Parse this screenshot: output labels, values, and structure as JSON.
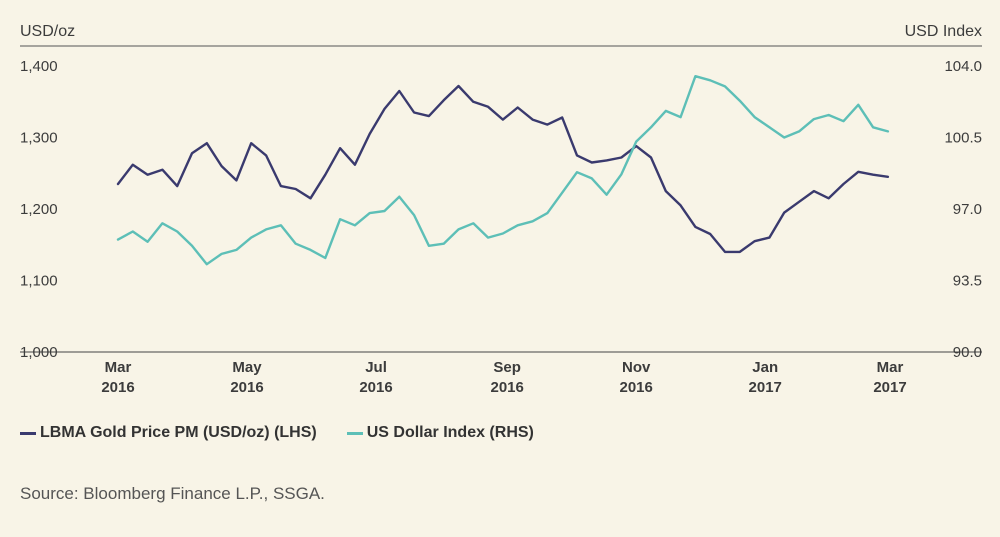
{
  "chart_data": {
    "type": "line",
    "left_axis": {
      "label": "USD/oz",
      "ticks": [
        "1,400",
        "1,300",
        "1,200",
        "1,100",
        "1,000"
      ],
      "ylim": [
        1000,
        1400
      ]
    },
    "right_axis": {
      "label": "USD Index",
      "ticks": [
        "104.0",
        "100.5",
        "97.0",
        "93.5",
        "90.0"
      ],
      "ylim": [
        90.0,
        104.0
      ]
    },
    "x_ticks": [
      {
        "line1": "Mar",
        "line2": "2016",
        "date": "2016-03-01"
      },
      {
        "line1": "May",
        "line2": "2016",
        "date": "2016-05-01"
      },
      {
        "line1": "Jul",
        "line2": "2016",
        "date": "2016-07-01"
      },
      {
        "line1": "Sep",
        "line2": "2016",
        "date": "2016-09-01"
      },
      {
        "line1": "Nov",
        "line2": "2016",
        "date": "2016-11-01"
      },
      {
        "line1": "Jan",
        "line2": "2017",
        "date": "2017-01-01"
      },
      {
        "line1": "Mar",
        "line2": "2017",
        "date": "2017-03-01"
      }
    ],
    "xlim": [
      "2016-03-01",
      "2017-03-01"
    ],
    "grid": false,
    "legend_position": "bottom-left",
    "series": [
      {
        "name": "LBMA Gold Price PM (USD/oz) (LHS)",
        "axis": "left",
        "color": "#3a3a6e",
        "x": [
          "2016-03-01",
          "2016-03-08",
          "2016-03-15",
          "2016-03-22",
          "2016-03-29",
          "2016-04-05",
          "2016-04-12",
          "2016-04-19",
          "2016-04-26",
          "2016-05-03",
          "2016-05-10",
          "2016-05-17",
          "2016-05-24",
          "2016-05-31",
          "2016-06-07",
          "2016-06-14",
          "2016-06-21",
          "2016-06-28",
          "2016-07-05",
          "2016-07-12",
          "2016-07-19",
          "2016-07-26",
          "2016-08-02",
          "2016-08-09",
          "2016-08-16",
          "2016-08-23",
          "2016-08-30",
          "2016-09-06",
          "2016-09-13",
          "2016-09-20",
          "2016-09-27",
          "2016-10-04",
          "2016-10-11",
          "2016-10-18",
          "2016-10-25",
          "2016-11-01",
          "2016-11-08",
          "2016-11-15",
          "2016-11-22",
          "2016-11-29",
          "2016-12-06",
          "2016-12-13",
          "2016-12-20",
          "2016-12-27",
          "2017-01-03",
          "2017-01-10",
          "2017-01-17",
          "2017-01-24",
          "2017-01-31",
          "2017-02-07",
          "2017-02-14",
          "2017-02-21",
          "2017-02-28"
        ],
        "values": [
          1235,
          1262,
          1248,
          1255,
          1232,
          1278,
          1292,
          1260,
          1240,
          1292,
          1275,
          1232,
          1228,
          1215,
          1248,
          1285,
          1262,
          1305,
          1340,
          1365,
          1335,
          1330,
          1352,
          1372,
          1350,
          1343,
          1325,
          1342,
          1325,
          1318,
          1328,
          1275,
          1265,
          1268,
          1272,
          1288,
          1272,
          1225,
          1205,
          1175,
          1165,
          1140,
          1140,
          1155,
          1160,
          1195,
          1210,
          1225,
          1215,
          1235,
          1252,
          1248,
          1245
        ]
      },
      {
        "name": "US Dollar Index (RHS)",
        "axis": "right",
        "color": "#5dbfb7",
        "x": [
          "2016-03-01",
          "2016-03-08",
          "2016-03-15",
          "2016-03-22",
          "2016-03-29",
          "2016-04-05",
          "2016-04-12",
          "2016-04-19",
          "2016-04-26",
          "2016-05-03",
          "2016-05-10",
          "2016-05-17",
          "2016-05-24",
          "2016-05-31",
          "2016-06-07",
          "2016-06-14",
          "2016-06-21",
          "2016-06-28",
          "2016-07-05",
          "2016-07-12",
          "2016-07-19",
          "2016-07-26",
          "2016-08-02",
          "2016-08-09",
          "2016-08-16",
          "2016-08-23",
          "2016-08-30",
          "2016-09-06",
          "2016-09-13",
          "2016-09-20",
          "2016-09-27",
          "2016-10-04",
          "2016-10-11",
          "2016-10-18",
          "2016-10-25",
          "2016-11-01",
          "2016-11-08",
          "2016-11-15",
          "2016-11-22",
          "2016-11-29",
          "2016-12-06",
          "2016-12-13",
          "2016-12-20",
          "2016-12-27",
          "2017-01-03",
          "2017-01-10",
          "2017-01-17",
          "2017-01-24",
          "2017-01-31",
          "2017-02-07",
          "2017-02-14",
          "2017-02-21",
          "2017-02-28"
        ],
        "values": [
          95.5,
          95.9,
          95.4,
          96.3,
          95.9,
          95.2,
          94.3,
          94.8,
          95.0,
          95.6,
          96.0,
          96.2,
          95.3,
          95.0,
          94.6,
          96.5,
          96.2,
          96.8,
          96.9,
          97.6,
          96.7,
          95.2,
          95.3,
          96.0,
          96.3,
          95.6,
          95.8,
          96.2,
          96.4,
          96.8,
          97.8,
          98.8,
          98.5,
          97.7,
          98.7,
          100.3,
          101.0,
          101.8,
          101.5,
          103.5,
          103.3,
          103.0,
          102.3,
          101.5,
          101.0,
          100.5,
          100.8,
          101.4,
          101.6,
          101.3,
          102.1,
          101.0,
          100.8
        ]
      }
    ],
    "colors": {
      "background": "#f8f4e7",
      "axis": "#3c3c3c"
    }
  },
  "legend": {
    "items": [
      {
        "label": "LBMA Gold Price PM (USD/oz) (LHS)",
        "color": "#3a3a6e"
      },
      {
        "label": "US Dollar Index (RHS)",
        "color": "#5dbfb7"
      }
    ]
  },
  "source": "Source: Bloomberg Finance L.P., SSGA."
}
